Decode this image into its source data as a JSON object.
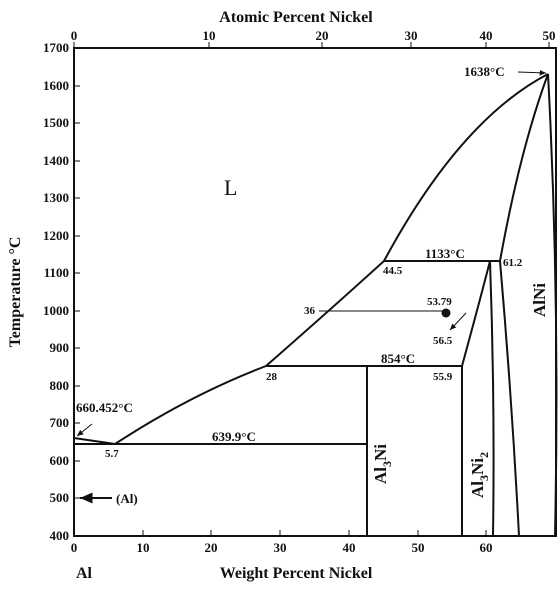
{
  "figure": {
    "top_axis_title": "Atomic Percent Nickel",
    "bottom_axis_title": "Weight Percent Nickel",
    "y_axis_title": "Temperature °C",
    "corner_label": "Al",
    "top_ticks": [
      "0",
      "10",
      "20",
      "30",
      "40",
      "50"
    ],
    "bottom_ticks": [
      "0",
      "10",
      "20",
      "30",
      "40",
      "50",
      "60"
    ],
    "y_ticks": [
      "400",
      "500",
      "600",
      "700",
      "800",
      "900",
      "1000",
      "1100",
      "1200",
      "1300",
      "1400",
      "1500",
      "1600",
      "1700"
    ]
  },
  "phases": {
    "liquid": "L",
    "alni": "AlNi",
    "al3ni_base": "Al",
    "al3ni_sub": "3",
    "al3ni_tail": "Ni",
    "al3ni2_base": "Al",
    "al3ni2_sub1": "3",
    "al3ni2_mid": "Ni",
    "al3ni2_sub2": "2",
    "al_marker": "(Al)"
  },
  "annotations": {
    "t_1638": "1638°C",
    "t_1133": "1133°C",
    "t_854": "854°C",
    "t_660": "660.452°C",
    "t_6399": "639.9°C",
    "c_44_5": "44.5",
    "c_61_2": "61.2",
    "c_36": "36",
    "c_53_79": "53.79",
    "c_56_5": "56.5",
    "c_28": "28",
    "c_55_9": "55.9",
    "c_5_7": "5.7"
  },
  "colors": {
    "ink": "#111111",
    "background": "#ffffff"
  }
}
